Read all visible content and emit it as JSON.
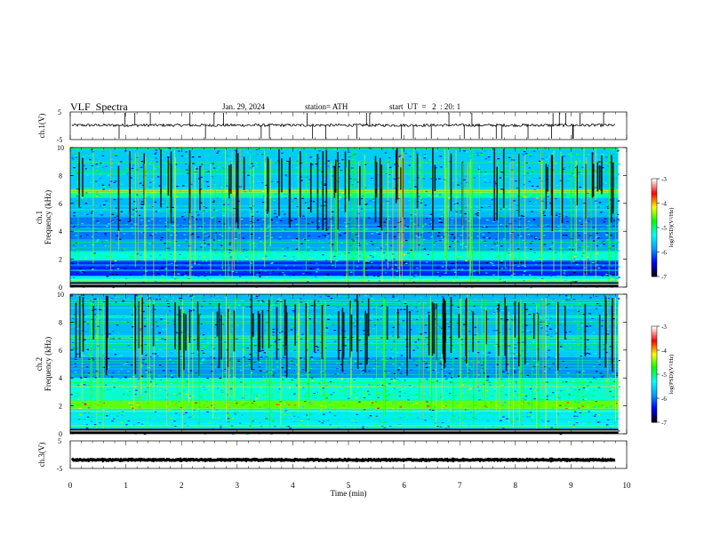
{
  "header": {
    "title": "VLF  Spectra",
    "date": "Jan. 29, 2024",
    "station": "station= ATH",
    "start": "start  UT  =   2  : 20: 1"
  },
  "chart_data": [
    {
      "type": "line",
      "ylabel": "ch.1(V)",
      "yticks": [
        "5",
        "-5"
      ],
      "ylim": [
        -5,
        5
      ],
      "xlim": [
        0,
        10
      ],
      "trace_end": 9.8,
      "series": [
        {
          "color": "#000000",
          "baseline": 0.2,
          "noise_amplitude": 0.5,
          "spike_count": 34
        }
      ]
    },
    {
      "type": "heatmap",
      "ylabel_top": "ch.1",
      "ylabel": "Frequency  (kHz)",
      "yticks": [
        "0",
        "2",
        "4",
        "6",
        "8",
        "10"
      ],
      "ylim": [
        0,
        10
      ],
      "xlim": [
        0,
        10
      ],
      "colorbar": {
        "label": "log(PSD)(V²/Hz)",
        "ticks": [
          "-3",
          "-4",
          "-5",
          "-6",
          "-7"
        ],
        "range": [
          -7,
          -3
        ],
        "colors": [
          "#000000",
          "#0000ff",
          "#00a0ff",
          "#00ffff",
          "#00ff00",
          "#ffff00",
          "#ff0000",
          "#ffffff"
        ]
      },
      "bands": [
        {
          "f_min": 0.0,
          "f_max": 0.3,
          "level": -4.6
        },
        {
          "f_min": 0.3,
          "f_max": 0.8,
          "level": -5.3
        },
        {
          "f_min": 0.8,
          "f_max": 1.9,
          "level": -6.3
        },
        {
          "f_min": 1.9,
          "f_max": 2.5,
          "level": -5.2
        },
        {
          "f_min": 2.5,
          "f_max": 3.4,
          "level": -5.8
        },
        {
          "f_min": 3.4,
          "f_max": 5.0,
          "level": -6.0
        },
        {
          "f_min": 5.0,
          "f_max": 6.4,
          "level": -5.7
        },
        {
          "f_min": 6.4,
          "f_max": 7.0,
          "level": -5.1
        },
        {
          "f_min": 7.0,
          "f_max": 10.0,
          "level": -5.6
        }
      ]
    },
    {
      "type": "heatmap",
      "ylabel_top": "ch.2",
      "ylabel": "Frequency  (kHz)",
      "yticks": [
        "0",
        "2",
        "4",
        "6",
        "8",
        "10"
      ],
      "ylim": [
        0,
        10
      ],
      "xlim": [
        0,
        10
      ],
      "colorbar": {
        "label": "log(PSD)(V²/Hz)",
        "ticks": [
          "-3",
          "-4",
          "-5",
          "-6",
          "-7"
        ],
        "range": [
          -7,
          -3
        ],
        "colors": [
          "#000000",
          "#0000ff",
          "#00a0ff",
          "#00ffff",
          "#00ff00",
          "#ffff00",
          "#ff0000",
          "#ffffff"
        ]
      },
      "bands": [
        {
          "f_min": 0.0,
          "f_max": 0.5,
          "level": -5.5
        },
        {
          "f_min": 0.5,
          "f_max": 1.8,
          "level": -5.4
        },
        {
          "f_min": 1.8,
          "f_max": 2.3,
          "level": -4.5
        },
        {
          "f_min": 2.3,
          "f_max": 4.0,
          "level": -5.2
        },
        {
          "f_min": 4.0,
          "f_max": 5.5,
          "level": -5.9
        },
        {
          "f_min": 5.5,
          "f_max": 7.0,
          "level": -5.6
        },
        {
          "f_min": 7.0,
          "f_max": 10.0,
          "level": -5.7
        }
      ]
    },
    {
      "type": "line",
      "ylabel": "ch.3(V)",
      "yticks": [
        "5",
        "-5"
      ],
      "ylim": [
        -5,
        5
      ],
      "xlim": [
        0,
        10
      ],
      "trace_end": 9.8,
      "series": [
        {
          "color": "#000000",
          "baseline": -1.9,
          "noise_amplitude": 0.2,
          "spike_count": 0
        }
      ]
    }
  ],
  "x_axis": {
    "label": "Time  (min)",
    "ticks": [
      "0",
      "1",
      "2",
      "3",
      "4",
      "5",
      "6",
      "7",
      "8",
      "9",
      "10"
    ],
    "range": [
      0,
      10
    ]
  }
}
